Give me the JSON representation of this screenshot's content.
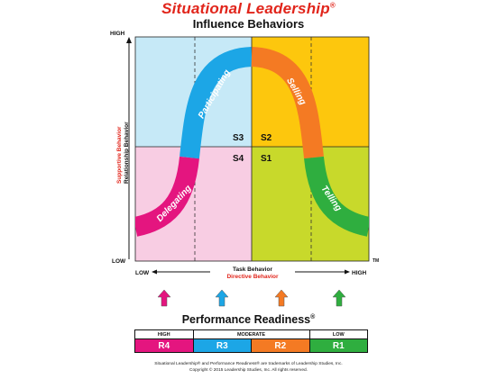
{
  "title": "Situational Leadership",
  "title_mark": "®",
  "subtitle": "Influence Behaviors",
  "y_axis": {
    "high": "HIGH",
    "low": "LOW",
    "label_top": "Supportive Behavior",
    "label_bottom": "Relationship Behavior"
  },
  "x_axis": {
    "low": "LOW",
    "high": "HIGH",
    "label_top": "Task Behavior",
    "label_bottom": "Directive Behavior"
  },
  "tm": "TM",
  "quadrants": [
    {
      "code": "S3",
      "color": "#c6e9f7"
    },
    {
      "code": "S2",
      "color": "#fdc70d"
    },
    {
      "code": "S4",
      "color": "#f8cde3"
    },
    {
      "code": "S1",
      "color": "#c8d92b"
    }
  ],
  "curve_segments": [
    {
      "label": "Delegating",
      "color": "#e4157f"
    },
    {
      "label": "Participating",
      "color": "#1ca6e6"
    },
    {
      "label": "Selling",
      "color": "#f47a23"
    },
    {
      "label": "Telling",
      "color": "#2fae3f"
    }
  ],
  "arrows": [
    {
      "color": "#e4157f"
    },
    {
      "color": "#1ca6e6"
    },
    {
      "color": "#f47a23"
    },
    {
      "color": "#2fae3f"
    }
  ],
  "performance": {
    "title": "Performance Readiness",
    "title_mark": "®",
    "headers": [
      "HIGH",
      "MODERATE",
      "LOW"
    ],
    "levels": [
      {
        "code": "R4",
        "color": "#e4157f"
      },
      {
        "code": "R3",
        "color": "#1ca6e6"
      },
      {
        "code": "R2",
        "color": "#f47a23"
      },
      {
        "code": "R1",
        "color": "#2fae3f"
      }
    ]
  },
  "footer": {
    "line1": "Situational Leadership® and Performance Readiness® are trademarks of Leadership Studies, Inc.",
    "line2": "Copyright © 2015 Leadership Studies, Inc. All rights reserved."
  }
}
